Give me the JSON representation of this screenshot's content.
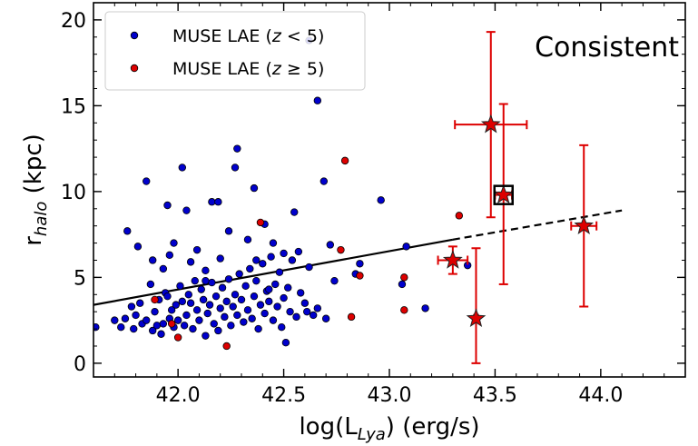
{
  "chart_data": {
    "type": "scatter",
    "title": "",
    "annotation": "Consistent",
    "xlabel": "log(L_{Lya}) (erg/s)",
    "ylabel": "r_{halo} (kpc)",
    "xlim": [
      41.6,
      44.4
    ],
    "ylim": [
      -0.8,
      21
    ],
    "xticks": [
      42.0,
      42.5,
      43.0,
      43.5,
      44.0
    ],
    "xtick_labels": [
      "42.0",
      "42.5",
      "43.0",
      "43.5",
      "44.0"
    ],
    "yticks": [
      0,
      5,
      10,
      15,
      20
    ],
    "ytick_labels": [
      "0",
      "5",
      "10",
      "15",
      "20"
    ],
    "legend": {
      "placement": "top-left",
      "entries": [
        {
          "label_pre": "MUSE LAE (",
          "label_math": "z",
          "label_post": " < 5)",
          "color": "#0000cc"
        },
        {
          "label_pre": "MUSE LAE (",
          "label_math": "z",
          "label_post": " ≥ 5)",
          "color": "#dd0000"
        }
      ]
    },
    "series": [
      {
        "name": "MUSE LAE (z < 5)",
        "color": "#0000cc",
        "points": [
          [
            41.61,
            2.1
          ],
          [
            41.7,
            2.5
          ],
          [
            41.73,
            2.1
          ],
          [
            41.75,
            2.6
          ],
          [
            41.78,
            3.3
          ],
          [
            41.79,
            2.0
          ],
          [
            41.8,
            2.8
          ],
          [
            41.82,
            3.5
          ],
          [
            41.83,
            2.3
          ],
          [
            41.85,
            2.5
          ],
          [
            41.87,
            4.6
          ],
          [
            41.88,
            1.9
          ],
          [
            41.89,
            3.0
          ],
          [
            41.9,
            2.2
          ],
          [
            41.91,
            3.7
          ],
          [
            41.92,
            1.7
          ],
          [
            41.93,
            2.3
          ],
          [
            41.94,
            4.1
          ],
          [
            41.95,
            3.9
          ],
          [
            41.96,
            2.6
          ],
          [
            41.97,
            3.1
          ],
          [
            41.98,
            2.1
          ],
          [
            41.99,
            3.4
          ],
          [
            42.0,
            2.5
          ],
          [
            42.01,
            4.5
          ],
          [
            42.02,
            3.6
          ],
          [
            42.03,
            2.2
          ],
          [
            42.04,
            2.8
          ],
          [
            42.05,
            4.0
          ],
          [
            42.06,
            3.5
          ],
          [
            42.07,
            2.0
          ],
          [
            42.08,
            4.8
          ],
          [
            42.09,
            3.1
          ],
          [
            42.1,
            2.5
          ],
          [
            42.11,
            4.3
          ],
          [
            42.12,
            3.7
          ],
          [
            42.13,
            1.6
          ],
          [
            42.14,
            2.9
          ],
          [
            42.15,
            3.4
          ],
          [
            42.16,
            4.7
          ],
          [
            42.17,
            2.3
          ],
          [
            42.18,
            3.9
          ],
          [
            42.19,
            1.9
          ],
          [
            42.2,
            3.2
          ],
          [
            42.21,
            4.4
          ],
          [
            42.22,
            2.7
          ],
          [
            42.23,
            3.6
          ],
          [
            42.24,
            4.9
          ],
          [
            42.25,
            2.2
          ],
          [
            42.26,
            3.3
          ],
          [
            42.27,
            4.0
          ],
          [
            42.28,
            2.8
          ],
          [
            42.29,
            5.2
          ],
          [
            42.3,
            3.7
          ],
          [
            42.31,
            2.4
          ],
          [
            42.32,
            4.5
          ],
          [
            42.33,
            3.1
          ],
          [
            42.34,
            5.5
          ],
          [
            42.35,
            2.6
          ],
          [
            42.36,
            3.9
          ],
          [
            42.37,
            4.8
          ],
          [
            42.38,
            2.0
          ],
          [
            42.39,
            3.4
          ],
          [
            42.4,
            5.8
          ],
          [
            42.41,
            2.9
          ],
          [
            42.42,
            4.2
          ],
          [
            42.43,
            3.6
          ],
          [
            42.44,
            6.2
          ],
          [
            42.45,
            2.5
          ],
          [
            42.46,
            4.6
          ],
          [
            42.47,
            3.3
          ],
          [
            42.48,
            5.3
          ],
          [
            42.49,
            2.1
          ],
          [
            42.5,
            3.8
          ],
          [
            42.51,
            1.2
          ],
          [
            42.52,
            4.4
          ],
          [
            42.53,
            3.0
          ],
          [
            42.54,
            6.0
          ],
          [
            42.56,
            2.7
          ],
          [
            42.58,
            4.1
          ],
          [
            42.6,
            3.5
          ],
          [
            42.62,
            5.6
          ],
          [
            42.64,
            2.8
          ],
          [
            42.66,
            3.2
          ],
          [
            42.7,
            2.6
          ],
          [
            42.74,
            4.8
          ],
          [
            42.86,
            5.8
          ],
          [
            41.76,
            7.7
          ],
          [
            41.81,
            6.8
          ],
          [
            41.85,
            10.6
          ],
          [
            41.88,
            6.0
          ],
          [
            41.93,
            5.5
          ],
          [
            41.96,
            6.3
          ],
          [
            41.98,
            7.0
          ],
          [
            42.02,
            11.4
          ],
          [
            42.06,
            5.9
          ],
          [
            42.09,
            6.6
          ],
          [
            42.13,
            5.4
          ],
          [
            42.16,
            9.4
          ],
          [
            42.2,
            6.1
          ],
          [
            42.24,
            7.7
          ],
          [
            42.28,
            12.5
          ],
          [
            42.33,
            7.2
          ],
          [
            42.37,
            6.0
          ],
          [
            42.41,
            8.1
          ],
          [
            42.45,
            7.0
          ],
          [
            42.5,
            6.4
          ],
          [
            42.55,
            8.8
          ],
          [
            42.62,
            18.8
          ],
          [
            42.66,
            15.3
          ],
          [
            42.69,
            10.6
          ],
          [
            42.72,
            6.9
          ],
          [
            42.84,
            5.2
          ],
          [
            42.96,
            9.5
          ],
          [
            43.06,
            4.6
          ],
          [
            43.08,
            6.8
          ],
          [
            43.17,
            3.2
          ],
          [
            43.37,
            5.7
          ],
          [
            41.95,
            9.2
          ],
          [
            42.04,
            8.9
          ],
          [
            42.27,
            11.4
          ],
          [
            42.19,
            9.4
          ],
          [
            42.36,
            10.2
          ],
          [
            42.57,
            6.5
          ],
          [
            42.13,
            4.8
          ],
          [
            42.43,
            4.3
          ],
          [
            42.61,
            3.0
          ]
        ]
      },
      {
        "name": "MUSE LAE (z ≥ 5)",
        "color": "#dd0000",
        "points": [
          [
            41.89,
            3.7
          ],
          [
            41.97,
            2.3
          ],
          [
            42.0,
            1.5
          ],
          [
            42.23,
            1.0
          ],
          [
            42.39,
            8.2
          ],
          [
            42.77,
            6.6
          ],
          [
            42.79,
            11.8
          ],
          [
            42.82,
            2.7
          ],
          [
            42.86,
            5.1
          ],
          [
            43.07,
            5.0
          ],
          [
            43.07,
            3.1
          ],
          [
            43.33,
            8.6
          ]
        ]
      }
    ],
    "stars": [
      {
        "x": 43.48,
        "y": 13.9,
        "xerr": 0.17,
        "yerr_low": 5.4,
        "yerr_high": 5.4
      },
      {
        "x": 43.54,
        "y": 9.8,
        "xerr": 0.04,
        "yerr_low": 5.2,
        "yerr_high": 5.3
      },
      {
        "x": 43.3,
        "y": 6.0,
        "xerr": 0.07,
        "yerr_low": 0.8,
        "yerr_high": 0.8
      },
      {
        "x": 43.41,
        "y": 2.6,
        "xerr": 0.01,
        "yerr_low": 2.6,
        "yerr_high": 4.1
      },
      {
        "x": 43.92,
        "y": 8.0,
        "xerr": 0.06,
        "yerr_low": 4.7,
        "yerr_high": 4.7
      }
    ],
    "highlight_square": {
      "x": 43.54,
      "y": 9.8
    },
    "fit_line": {
      "solid": [
        [
          41.6,
          3.4
        ],
        [
          43.3,
          7.2
        ]
      ],
      "dashed": [
        [
          43.3,
          7.2
        ],
        [
          44.1,
          8.9
        ]
      ]
    }
  }
}
